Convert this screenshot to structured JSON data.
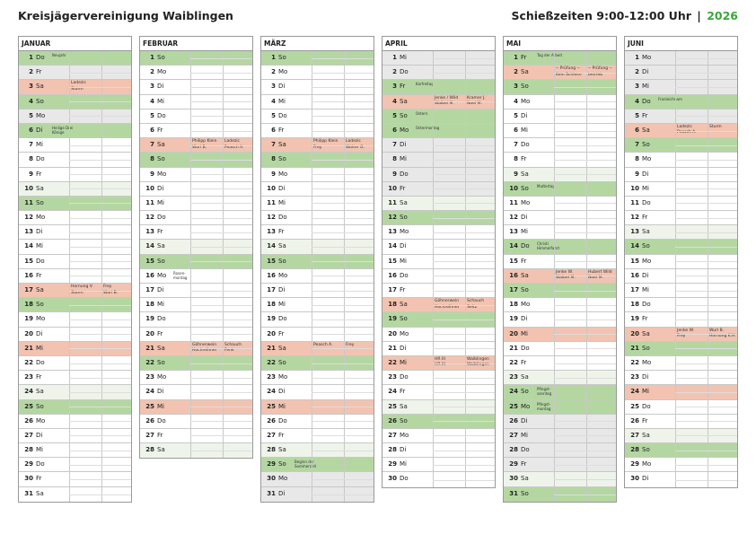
{
  "header": {
    "title": "Kreisjägervereinigung Waiblingen",
    "times": "Schießzeiten 9:00-12:00 Uhr",
    "year": "2026"
  },
  "months": [
    {
      "name": "JANUAR",
      "days": [
        {
          "d": "1",
          "w": "Do",
          "t": "hol",
          "n": "Neujahr"
        },
        {
          "d": "2",
          "w": "Fr",
          "t": "grey"
        },
        {
          "d": "3",
          "w": "Sa",
          "t": "event",
          "a": "Ladezic\nSturm"
        },
        {
          "d": "4",
          "w": "So",
          "t": "we-sun"
        },
        {
          "d": "5",
          "w": "Mo",
          "t": "grey"
        },
        {
          "d": "6",
          "w": "Di",
          "t": "hol",
          "n": "Heilige Drei\nKönige"
        },
        {
          "d": "7",
          "w": "Mi"
        },
        {
          "d": "8",
          "w": "Do"
        },
        {
          "d": "9",
          "w": "Fr"
        },
        {
          "d": "10",
          "w": "Sa",
          "t": "we-sat"
        },
        {
          "d": "11",
          "w": "So",
          "t": "we-sun"
        },
        {
          "d": "12",
          "w": "Mo"
        },
        {
          "d": "13",
          "w": "Di"
        },
        {
          "d": "14",
          "w": "Mi"
        },
        {
          "d": "15",
          "w": "Do"
        },
        {
          "d": "16",
          "w": "Fr"
        },
        {
          "d": "17",
          "w": "Sa",
          "t": "event",
          "a": "Hornung V.\nSturm",
          "b": "Frey\nWurl B."
        },
        {
          "d": "18",
          "w": "So",
          "t": "we-sun"
        },
        {
          "d": "19",
          "w": "Mo"
        },
        {
          "d": "20",
          "w": "Di"
        },
        {
          "d": "21",
          "w": "Mi",
          "t": "event"
        },
        {
          "d": "22",
          "w": "Do"
        },
        {
          "d": "23",
          "w": "Fr"
        },
        {
          "d": "24",
          "w": "Sa",
          "t": "we-sat"
        },
        {
          "d": "25",
          "w": "So",
          "t": "we-sun"
        },
        {
          "d": "26",
          "w": "Mo"
        },
        {
          "d": "27",
          "w": "Di"
        },
        {
          "d": "28",
          "w": "Mi"
        },
        {
          "d": "29",
          "w": "Do"
        },
        {
          "d": "30",
          "w": "Fr"
        },
        {
          "d": "31",
          "w": "Sa"
        }
      ]
    },
    {
      "name": "FEBRUAR",
      "days": [
        {
          "d": "1",
          "w": "So",
          "t": "we-sun"
        },
        {
          "d": "2",
          "w": "Mo"
        },
        {
          "d": "3",
          "w": "Di"
        },
        {
          "d": "4",
          "w": "Mi"
        },
        {
          "d": "5",
          "w": "Do"
        },
        {
          "d": "6",
          "w": "Fr"
        },
        {
          "d": "7",
          "w": "Sa",
          "t": "event",
          "a": "Philipp Klein\nWurl B.",
          "b": "Ladezic\nPeasch A."
        },
        {
          "d": "8",
          "w": "So",
          "t": "we-sun"
        },
        {
          "d": "9",
          "w": "Mo"
        },
        {
          "d": "10",
          "w": "Di"
        },
        {
          "d": "11",
          "w": "Mi"
        },
        {
          "d": "12",
          "w": "Do"
        },
        {
          "d": "13",
          "w": "Fr"
        },
        {
          "d": "14",
          "w": "Sa",
          "t": "we-sat"
        },
        {
          "d": "15",
          "w": "So",
          "t": "we-sun"
        },
        {
          "d": "16",
          "w": "Mo",
          "n": "Rosen-\nmontag"
        },
        {
          "d": "17",
          "w": "Di"
        },
        {
          "d": "18",
          "w": "Mi"
        },
        {
          "d": "19",
          "w": "Do"
        },
        {
          "d": "20",
          "w": "Fr"
        },
        {
          "d": "21",
          "w": "Sa",
          "t": "event",
          "a": "Göhnerwein\nHochreihner",
          "b": "Schauch\nFenk"
        },
        {
          "d": "22",
          "w": "So",
          "t": "we-sun"
        },
        {
          "d": "23",
          "w": "Mo"
        },
        {
          "d": "24",
          "w": "Di"
        },
        {
          "d": "25",
          "w": "Mi",
          "t": "event"
        },
        {
          "d": "26",
          "w": "Do"
        },
        {
          "d": "27",
          "w": "Fr"
        },
        {
          "d": "28",
          "w": "Sa",
          "t": "we-sat"
        }
      ]
    },
    {
      "name": "MÄRZ",
      "days": [
        {
          "d": "1",
          "w": "So",
          "t": "we-sun"
        },
        {
          "d": "2",
          "w": "Mo"
        },
        {
          "d": "3",
          "w": "Di"
        },
        {
          "d": "4",
          "w": "Mi"
        },
        {
          "d": "5",
          "w": "Do"
        },
        {
          "d": "6",
          "w": "Fr"
        },
        {
          "d": "7",
          "w": "Sa",
          "t": "event",
          "a": "Philipp Klein\nFrey",
          "b": "Ladezic\nWolter G."
        },
        {
          "d": "8",
          "w": "So",
          "t": "we-sun"
        },
        {
          "d": "9",
          "w": "Mo"
        },
        {
          "d": "10",
          "w": "Di"
        },
        {
          "d": "11",
          "w": "Mi"
        },
        {
          "d": "12",
          "w": "Do"
        },
        {
          "d": "13",
          "w": "Fr"
        },
        {
          "d": "14",
          "w": "Sa",
          "t": "we-sat"
        },
        {
          "d": "15",
          "w": "So",
          "t": "we-sun"
        },
        {
          "d": "16",
          "w": "Mo"
        },
        {
          "d": "17",
          "w": "Di"
        },
        {
          "d": "18",
          "w": "Mi"
        },
        {
          "d": "19",
          "w": "Do"
        },
        {
          "d": "20",
          "w": "Fr"
        },
        {
          "d": "21",
          "w": "Sa",
          "t": "event",
          "a": "Peasch A.",
          "b": "Frey"
        },
        {
          "d": "22",
          "w": "So",
          "t": "we-sun"
        },
        {
          "d": "23",
          "w": "Mo"
        },
        {
          "d": "24",
          "w": "Di"
        },
        {
          "d": "25",
          "w": "Mi",
          "t": "event"
        },
        {
          "d": "26",
          "w": "Do"
        },
        {
          "d": "27",
          "w": "Fr"
        },
        {
          "d": "28",
          "w": "Sa",
          "t": "we-sat"
        },
        {
          "d": "29",
          "w": "So",
          "t": "we-sun",
          "n": "Beginn der\nSommerzeit"
        },
        {
          "d": "30",
          "w": "Mo",
          "t": "grey"
        },
        {
          "d": "31",
          "w": "Di",
          "t": "grey"
        }
      ]
    },
    {
      "name": "APRIL",
      "days": [
        {
          "d": "1",
          "w": "Mi",
          "t": "grey"
        },
        {
          "d": "2",
          "w": "Do",
          "t": "grey"
        },
        {
          "d": "3",
          "w": "Fr",
          "t": "hol",
          "n": "Karfreitag"
        },
        {
          "d": "4",
          "w": "Sa",
          "t": "event",
          "a": "Jenke / Wild\nWaibel M.",
          "b": "Kramer J.\nNoel M."
        },
        {
          "d": "5",
          "w": "So",
          "t": "hol",
          "n": "Ostern"
        },
        {
          "d": "6",
          "w": "Mo",
          "t": "hol",
          "n": "Ostermontag"
        },
        {
          "d": "7",
          "w": "Di",
          "t": "grey"
        },
        {
          "d": "8",
          "w": "Mi",
          "t": "grey"
        },
        {
          "d": "9",
          "w": "Do",
          "t": "grey"
        },
        {
          "d": "10",
          "w": "Fr",
          "t": "grey"
        },
        {
          "d": "11",
          "w": "Sa",
          "t": "we-sat"
        },
        {
          "d": "12",
          "w": "So",
          "t": "we-sun"
        },
        {
          "d": "13",
          "w": "Mo"
        },
        {
          "d": "14",
          "w": "Di"
        },
        {
          "d": "15",
          "w": "Mi"
        },
        {
          "d": "16",
          "w": "Do"
        },
        {
          "d": "17",
          "w": "Fr"
        },
        {
          "d": "18",
          "w": "Sa",
          "t": "event",
          "a": "Göhnerwein\nHochreihner",
          "b": "Schauch\nSeitz"
        },
        {
          "d": "19",
          "w": "So",
          "t": "we-sun"
        },
        {
          "d": "20",
          "w": "Mo"
        },
        {
          "d": "21",
          "w": "Di"
        },
        {
          "d": "22",
          "w": "Mi",
          "t": "event",
          "a": "HR III\nHR III",
          "b": "Waiblingen\nWaiblingen"
        },
        {
          "d": "23",
          "w": "Do"
        },
        {
          "d": "24",
          "w": "Fr"
        },
        {
          "d": "25",
          "w": "Sa",
          "t": "we-sat"
        },
        {
          "d": "26",
          "w": "So",
          "t": "we-sun"
        },
        {
          "d": "27",
          "w": "Mo"
        },
        {
          "d": "28",
          "w": "Di"
        },
        {
          "d": "29",
          "w": "Mi"
        },
        {
          "d": "30",
          "w": "Do"
        }
      ]
    },
    {
      "name": "MAI",
      "days": [
        {
          "d": "1",
          "w": "Fr",
          "t": "hol",
          "n": "Tag der Arbeit"
        },
        {
          "d": "2",
          "w": "Sa",
          "t": "event",
          "a": "-- Prüfung --\nKein Schiess-",
          "b": "-- Prüfung --\nbetrieb"
        },
        {
          "d": "3",
          "w": "So",
          "t": "we-sun"
        },
        {
          "d": "4",
          "w": "Mo"
        },
        {
          "d": "5",
          "w": "Di"
        },
        {
          "d": "6",
          "w": "Mi"
        },
        {
          "d": "7",
          "w": "Do"
        },
        {
          "d": "8",
          "w": "Fr"
        },
        {
          "d": "9",
          "w": "Sa",
          "t": "we-sat"
        },
        {
          "d": "10",
          "w": "So",
          "t": "we-sun",
          "n": "Muttertag"
        },
        {
          "d": "11",
          "w": "Mo"
        },
        {
          "d": "12",
          "w": "Di"
        },
        {
          "d": "13",
          "w": "Mi"
        },
        {
          "d": "14",
          "w": "Do",
          "t": "hol",
          "n": "Christi\nHimmelfahrt"
        },
        {
          "d": "15",
          "w": "Fr"
        },
        {
          "d": "16",
          "w": "Sa",
          "t": "event",
          "a": "Jenke W.\nWaibel M.",
          "b": "Hubert Wild\nNoel M."
        },
        {
          "d": "17",
          "w": "So",
          "t": "we-sun"
        },
        {
          "d": "18",
          "w": "Mo"
        },
        {
          "d": "19",
          "w": "Di"
        },
        {
          "d": "20",
          "w": "Mi",
          "t": "event"
        },
        {
          "d": "21",
          "w": "Do"
        },
        {
          "d": "22",
          "w": "Fr"
        },
        {
          "d": "23",
          "w": "Sa",
          "t": "we-sat"
        },
        {
          "d": "24",
          "w": "So",
          "t": "hol",
          "n": "Pfingst-\nsonntag"
        },
        {
          "d": "25",
          "w": "Mo",
          "t": "hol",
          "n": "Pfingst-\nmontag"
        },
        {
          "d": "26",
          "w": "Di",
          "t": "grey"
        },
        {
          "d": "27",
          "w": "Mi",
          "t": "grey"
        },
        {
          "d": "28",
          "w": "Do",
          "t": "grey"
        },
        {
          "d": "29",
          "w": "Fr",
          "t": "grey"
        },
        {
          "d": "30",
          "w": "Sa",
          "t": "we-sat"
        },
        {
          "d": "31",
          "w": "So",
          "t": "we-sun"
        }
      ]
    },
    {
      "name": "JUNI",
      "days": [
        {
          "d": "1",
          "w": "Mo",
          "t": "grey"
        },
        {
          "d": "2",
          "w": "Di",
          "t": "grey"
        },
        {
          "d": "3",
          "w": "Mi",
          "t": "grey"
        },
        {
          "d": "4",
          "w": "Do",
          "t": "hol",
          "n": "Fronleichnam"
        },
        {
          "d": "5",
          "w": "Fr",
          "t": "grey"
        },
        {
          "d": "6",
          "w": "Sa",
          "t": "event",
          "a": "Ladezic\nPeasch A.",
          "b": "Sturm"
        },
        {
          "d": "7",
          "w": "So",
          "t": "we-sun"
        },
        {
          "d": "8",
          "w": "Mo"
        },
        {
          "d": "9",
          "w": "Di"
        },
        {
          "d": "10",
          "w": "Mi"
        },
        {
          "d": "11",
          "w": "Do"
        },
        {
          "d": "12",
          "w": "Fr"
        },
        {
          "d": "13",
          "w": "Sa",
          "t": "we-sat"
        },
        {
          "d": "14",
          "w": "So",
          "t": "we-sun"
        },
        {
          "d": "15",
          "w": "Mo"
        },
        {
          "d": "16",
          "w": "Di"
        },
        {
          "d": "17",
          "w": "Mi"
        },
        {
          "d": "18",
          "w": "Do"
        },
        {
          "d": "19",
          "w": "Fr"
        },
        {
          "d": "20",
          "w": "Sa",
          "t": "event",
          "a": "Jenke W.\nFrey",
          "b": "Wurl B.\nHornung K.H."
        },
        {
          "d": "21",
          "w": "So",
          "t": "we-sun"
        },
        {
          "d": "22",
          "w": "Mo"
        },
        {
          "d": "23",
          "w": "Di"
        },
        {
          "d": "24",
          "w": "Mi",
          "t": "event"
        },
        {
          "d": "25",
          "w": "Do"
        },
        {
          "d": "26",
          "w": "Fr"
        },
        {
          "d": "27",
          "w": "Sa",
          "t": "we-sat"
        },
        {
          "d": "28",
          "w": "So",
          "t": "we-sun"
        },
        {
          "d": "29",
          "w": "Mo"
        },
        {
          "d": "30",
          "w": "Di"
        }
      ]
    }
  ]
}
